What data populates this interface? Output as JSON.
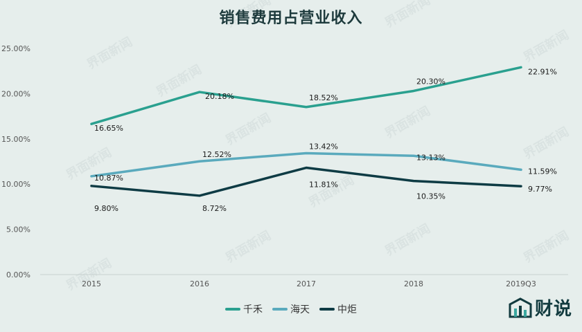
{
  "title": "销售费用占营业收入",
  "colors": {
    "qianhe": "#2aa08f",
    "haitian": "#5aaabd",
    "zhongju": "#0e3b44",
    "background": "#e6eeec"
  },
  "legend": [
    {
      "label": "千禾",
      "color": "#2aa08f"
    },
    {
      "label": "海天",
      "color": "#5aaabd"
    },
    {
      "label": "中炬",
      "color": "#0e3b44"
    }
  ],
  "brand": {
    "text": "财说",
    "icon": "bar-chart-logo-icon"
  },
  "watermark": "界面新闻",
  "chart_data": {
    "type": "line",
    "categories": [
      "2015",
      "2016",
      "2017",
      "2018",
      "2019Q3"
    ],
    "y_ticks": [
      "0.00%",
      "5.00%",
      "10.00%",
      "15.00%",
      "20.00%",
      "25.00%"
    ],
    "ylim": [
      0,
      25
    ],
    "grid": false,
    "legend_position": "bottom",
    "series": [
      {
        "name": "千禾",
        "values": [
          16.65,
          20.18,
          18.52,
          20.3,
          22.91
        ],
        "labels": [
          "16.65%",
          "20.18%",
          "18.52%",
          "20.30%",
          "22.91%"
        ]
      },
      {
        "name": "海天",
        "values": [
          10.87,
          12.52,
          13.42,
          13.13,
          11.59
        ],
        "labels": [
          "10.87%",
          "12.52%",
          "13.42%",
          "13.13%",
          "11.59%"
        ]
      },
      {
        "name": "中炬",
        "values": [
          9.8,
          8.72,
          11.81,
          10.35,
          9.77
        ],
        "labels": [
          "9.80%",
          "8.72%",
          "11.81%",
          "10.35%",
          "9.77%"
        ]
      }
    ]
  }
}
